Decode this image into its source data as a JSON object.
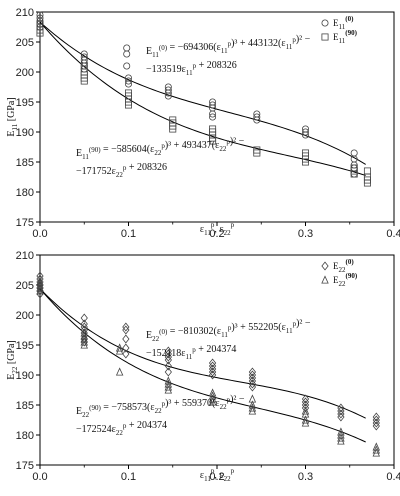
{
  "chart_data": [
    {
      "type": "scatter",
      "xlim": [
        0.0,
        0.4
      ],
      "ylim": [
        175,
        210
      ],
      "x_ticks": [
        "0.0",
        "0.1",
        "0.2",
        "0.3",
        "0.4"
      ],
      "y_ticks": [
        "175",
        "180",
        "185",
        "190",
        "195",
        "200",
        "205",
        "210"
      ],
      "xlabel": "ε11p, ε22p",
      "ylabel": "E11 [GPa]",
      "legend_position": "top-right",
      "series": [
        {
          "name": "E11(0)",
          "marker": "circle",
          "points": [
            [
              0.0,
              209.5
            ],
            [
              0.0,
              209.0
            ],
            [
              0.0,
              208.5
            ],
            [
              0.0,
              208.0
            ],
            [
              0.0,
              207.5
            ],
            [
              0.05,
              203.0
            ],
            [
              0.05,
              202.5
            ],
            [
              0.05,
              202.0
            ],
            [
              0.05,
              201.5
            ],
            [
              0.05,
              201.0
            ],
            [
              0.05,
              200.5
            ],
            [
              0.098,
              204.0
            ],
            [
              0.098,
              203.0
            ],
            [
              0.098,
              201.0
            ],
            [
              0.1,
              199.0
            ],
            [
              0.1,
              198.5
            ],
            [
              0.1,
              198.0
            ],
            [
              0.145,
              197.5
            ],
            [
              0.145,
              197.0
            ],
            [
              0.145,
              196.5
            ],
            [
              0.145,
              196.0
            ],
            [
              0.195,
              195.0
            ],
            [
              0.195,
              194.5
            ],
            [
              0.195,
              194.0
            ],
            [
              0.195,
              193.0
            ],
            [
              0.195,
              192.5
            ],
            [
              0.245,
              193.0
            ],
            [
              0.245,
              192.5
            ],
            [
              0.245,
              192.0
            ],
            [
              0.3,
              190.5
            ],
            [
              0.3,
              190.0
            ],
            [
              0.3,
              189.5
            ],
            [
              0.355,
              186.5
            ],
            [
              0.355,
              185.5
            ],
            [
              0.355,
              184.5
            ],
            [
              0.355,
              184.0
            ],
            [
              0.355,
              183.0
            ]
          ]
        },
        {
          "name": "E11(90)",
          "marker": "square",
          "points": [
            [
              0.0,
              208.0
            ],
            [
              0.0,
              207.0
            ],
            [
              0.0,
              206.5
            ],
            [
              0.05,
              201.0
            ],
            [
              0.05,
              200.0
            ],
            [
              0.05,
              199.5
            ],
            [
              0.05,
              199.0
            ],
            [
              0.05,
              198.5
            ],
            [
              0.1,
              196.5
            ],
            [
              0.1,
              196.0
            ],
            [
              0.1,
              195.5
            ],
            [
              0.1,
              195.0
            ],
            [
              0.1,
              194.5
            ],
            [
              0.15,
              192.0
            ],
            [
              0.15,
              191.5
            ],
            [
              0.15,
              191.0
            ],
            [
              0.15,
              190.5
            ],
            [
              0.195,
              190.5
            ],
            [
              0.195,
              190.0
            ],
            [
              0.195,
              189.5
            ],
            [
              0.195,
              189.0
            ],
            [
              0.195,
              188.5
            ],
            [
              0.245,
              187.0
            ],
            [
              0.245,
              186.5
            ],
            [
              0.3,
              186.5
            ],
            [
              0.3,
              186.0
            ],
            [
              0.3,
              185.5
            ],
            [
              0.3,
              185.0
            ],
            [
              0.355,
              184.0
            ],
            [
              0.355,
              183.5
            ],
            [
              0.355,
              183.0
            ],
            [
              0.37,
              183.5
            ],
            [
              0.37,
              182.5
            ],
            [
              0.37,
              182.0
            ],
            [
              0.37,
              181.5
            ]
          ]
        }
      ],
      "fits": [
        {
          "for": "E11(0)",
          "coefficients": [
            -694306,
            443132,
            -133519,
            208326
          ]
        },
        {
          "for": "E11(90)",
          "coefficients": [
            -585604,
            493437,
            -171752,
            208326
          ]
        }
      ],
      "annotations": [
        [
          "E",
          "11",
          "(0)",
          " = −694306(ε",
          "11",
          "p",
          ")³ + 443132(ε",
          "11",
          "p",
          ")² −"
        ],
        [
          "−133519ε",
          "11",
          "p",
          " + 208326"
        ],
        [
          "E",
          "11",
          "(90)",
          " = −585604(ε",
          "22",
          "p",
          ")³ + 493437(ε",
          "22",
          "p",
          ")² −"
        ],
        [
          "−171752ε",
          "22",
          "p",
          " + 208326"
        ]
      ]
    },
    {
      "type": "scatter",
      "xlim": [
        0.0,
        0.4
      ],
      "ylim": [
        175,
        210
      ],
      "x_ticks": [
        "0.0",
        "0.1",
        "0.2",
        "0.3",
        "0.4"
      ],
      "y_ticks": [
        "175",
        "180",
        "185",
        "190",
        "195",
        "200",
        "205",
        "210"
      ],
      "xlabel": "ε11p, ε22p",
      "ylabel": "E22 [GPa]",
      "legend_position": "top-right",
      "series": [
        {
          "name": "E22(0)",
          "marker": "diamond",
          "points": [
            [
              0.0,
              206.5
            ],
            [
              0.0,
              206.0
            ],
            [
              0.0,
              205.5
            ],
            [
              0.0,
              205.0
            ],
            [
              0.0,
              204.5
            ],
            [
              0.0,
              204.0
            ],
            [
              0.0,
              203.5
            ],
            [
              0.05,
              199.5
            ],
            [
              0.05,
              198.5
            ],
            [
              0.05,
              198.0
            ],
            [
              0.05,
              197.5
            ],
            [
              0.05,
              197.0
            ],
            [
              0.05,
              196.0
            ],
            [
              0.05,
              195.5
            ],
            [
              0.097,
              198.0
            ],
            [
              0.097,
              197.5
            ],
            [
              0.097,
              196.0
            ],
            [
              0.097,
              194.5
            ],
            [
              0.097,
              193.5
            ],
            [
              0.145,
              194.0
            ],
            [
              0.145,
              193.5
            ],
            [
              0.145,
              193.0
            ],
            [
              0.145,
              192.5
            ],
            [
              0.145,
              191.5
            ],
            [
              0.145,
              190.5
            ],
            [
              0.195,
              192.0
            ],
            [
              0.195,
              191.5
            ],
            [
              0.195,
              191.0
            ],
            [
              0.195,
              190.5
            ],
            [
              0.195,
              190.0
            ],
            [
              0.24,
              190.5
            ],
            [
              0.24,
              190.0
            ],
            [
              0.24,
              189.5
            ],
            [
              0.24,
              189.0
            ],
            [
              0.24,
              188.5
            ],
            [
              0.24,
              188.0
            ],
            [
              0.3,
              186.0
            ],
            [
              0.3,
              185.5
            ],
            [
              0.3,
              185.0
            ],
            [
              0.3,
              184.5
            ],
            [
              0.34,
              184.5
            ],
            [
              0.34,
              184.0
            ],
            [
              0.34,
              183.5
            ],
            [
              0.34,
              183.0
            ],
            [
              0.38,
              183.0
            ],
            [
              0.38,
              182.5
            ],
            [
              0.38,
              182.0
            ],
            [
              0.38,
              181.5
            ]
          ]
        },
        {
          "name": "E22(90)",
          "marker": "triangle",
          "points": [
            [
              0.0,
              205.5
            ],
            [
              0.0,
              205.0
            ],
            [
              0.0,
              204.5
            ],
            [
              0.0,
              204.0
            ],
            [
              0.05,
              197.0
            ],
            [
              0.05,
              196.5
            ],
            [
              0.05,
              196.0
            ],
            [
              0.05,
              195.5
            ],
            [
              0.05,
              195.0
            ],
            [
              0.09,
              194.5
            ],
            [
              0.09,
              194.0
            ],
            [
              0.09,
              190.5
            ],
            [
              0.145,
              189.0
            ],
            [
              0.145,
              188.5
            ],
            [
              0.145,
              188.0
            ],
            [
              0.145,
              187.5
            ],
            [
              0.195,
              187.0
            ],
            [
              0.195,
              186.5
            ],
            [
              0.195,
              186.0
            ],
            [
              0.195,
              185.5
            ],
            [
              0.24,
              186.0
            ],
            [
              0.24,
              185.0
            ],
            [
              0.24,
              184.5
            ],
            [
              0.24,
              184.0
            ],
            [
              0.3,
              184.0
            ],
            [
              0.3,
              183.5
            ],
            [
              0.3,
              182.5
            ],
            [
              0.3,
              182.0
            ],
            [
              0.34,
              180.5
            ],
            [
              0.34,
              180.0
            ],
            [
              0.34,
              179.5
            ],
            [
              0.34,
              179.0
            ],
            [
              0.38,
              178.0
            ],
            [
              0.38,
              177.5
            ],
            [
              0.38,
              177.0
            ]
          ]
        }
      ],
      "fits": [
        {
          "for": "E22(0)",
          "coefficients": [
            -810302,
            552205,
            -152118,
            204374
          ]
        },
        {
          "for": "E22(90)",
          "coefficients": [
            -758573,
            559370,
            -172524,
            204374
          ]
        }
      ],
      "annotations": [
        [
          "E",
          "22",
          "(0)",
          " = −810302(ε",
          "11",
          "p",
          ")³ + 552205(ε",
          "11",
          "p",
          ")² −"
        ],
        [
          "−152118ε",
          "11",
          "p",
          " + 204374"
        ],
        [
          "E",
          "22",
          "(90)",
          " = −758573(ε",
          "22",
          "p",
          ")³ + 559370(ε",
          "22",
          "p",
          ")² −"
        ],
        [
          "−172524ε",
          "22",
          "p",
          " + 204374"
        ]
      ]
    }
  ]
}
